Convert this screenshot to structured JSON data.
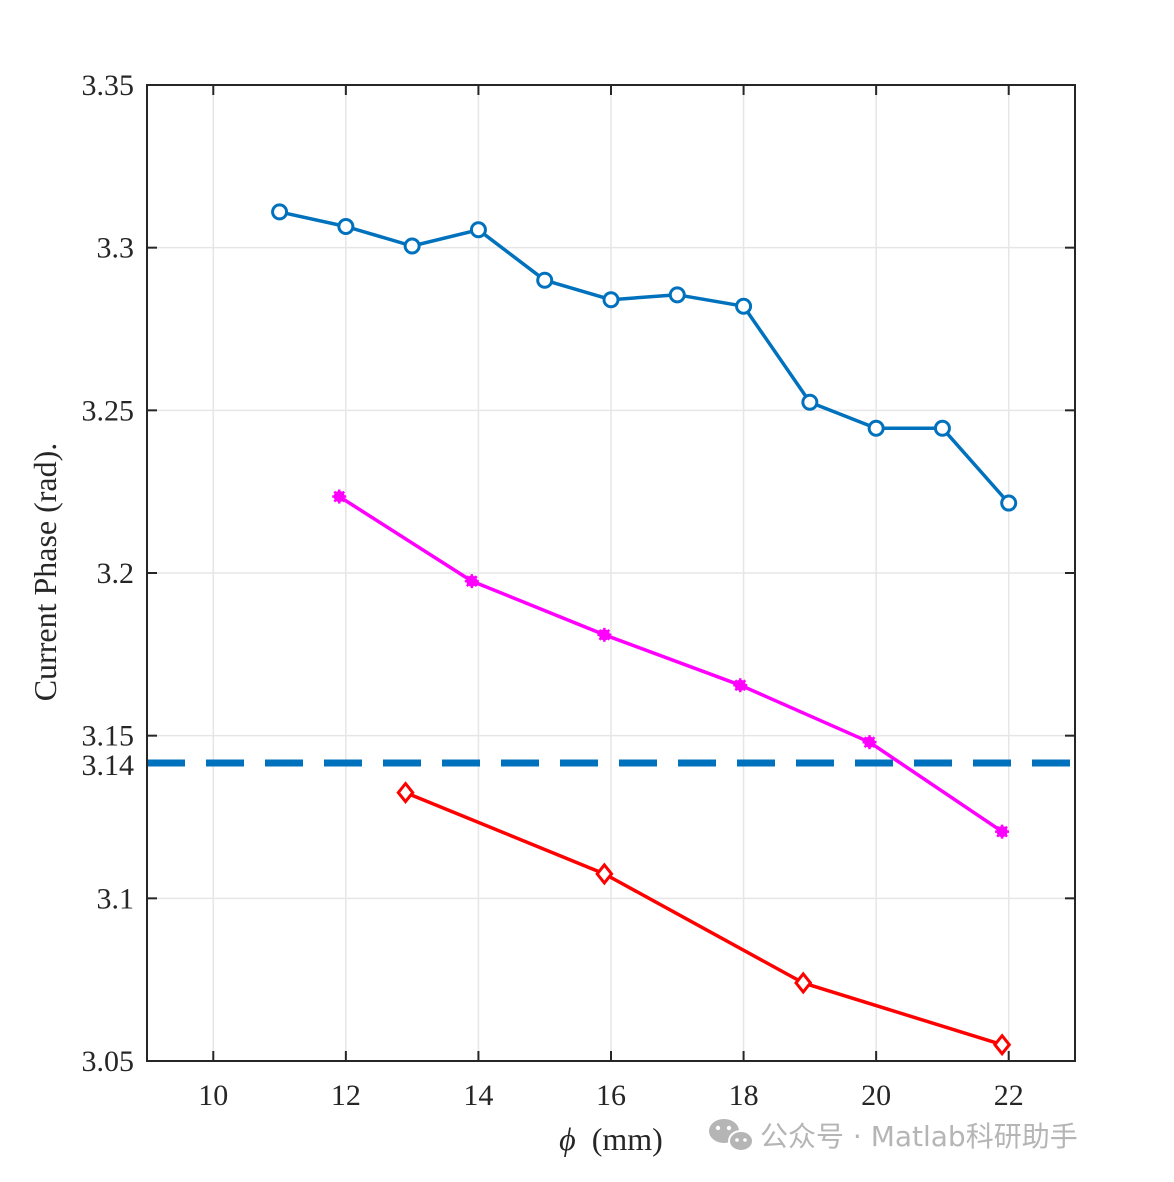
{
  "chart_data": {
    "type": "line",
    "title": "",
    "xlabel_symbol": "ϕ",
    "xlabel_unit": "(mm)",
    "ylabel": "Current Phase (rad).",
    "xlim": [
      9,
      23
    ],
    "ylim": [
      3.05,
      3.35
    ],
    "xticks": [
      10,
      12,
      14,
      16,
      18,
      20,
      22
    ],
    "yticks": [
      3.05,
      3.1,
      3.15,
      3.2,
      3.25,
      3.3,
      3.35
    ],
    "ytick_labels": [
      "3.05",
      "3.1",
      "3.15",
      "3.2",
      "3.25",
      "3.3",
      "3.35"
    ],
    "extra_ytick_label": "3.14",
    "grid": true,
    "series": [
      {
        "name": "blue-circle",
        "color": "#0072BD",
        "marker": "circle",
        "x": [
          11,
          12,
          13,
          14,
          15,
          16,
          17,
          18,
          19,
          20,
          21,
          22
        ],
        "y": [
          3.311,
          3.3065,
          3.3005,
          3.3055,
          3.29,
          3.284,
          3.2855,
          3.282,
          3.2525,
          3.2445,
          3.2445,
          3.2215
        ]
      },
      {
        "name": "magenta-star",
        "color": "#FF00FF",
        "marker": "star",
        "x": [
          11.9,
          13.9,
          15.9,
          17.95,
          19.9,
          21.9
        ],
        "y": [
          3.2235,
          3.1975,
          3.181,
          3.1655,
          3.148,
          3.1205
        ]
      },
      {
        "name": "red-diamond",
        "color": "#FF0000",
        "marker": "diamond",
        "x": [
          12.9,
          15.9,
          18.9,
          21.9
        ],
        "y": [
          3.1325,
          3.1075,
          3.074,
          3.055
        ]
      }
    ],
    "reference_line": {
      "name": "pi-reference",
      "y": 3.1416,
      "color": "#0072BD",
      "style": "dashed"
    }
  },
  "watermark": {
    "text": "公众号 · Matlab科研助手",
    "icon": "wechat-icon"
  }
}
